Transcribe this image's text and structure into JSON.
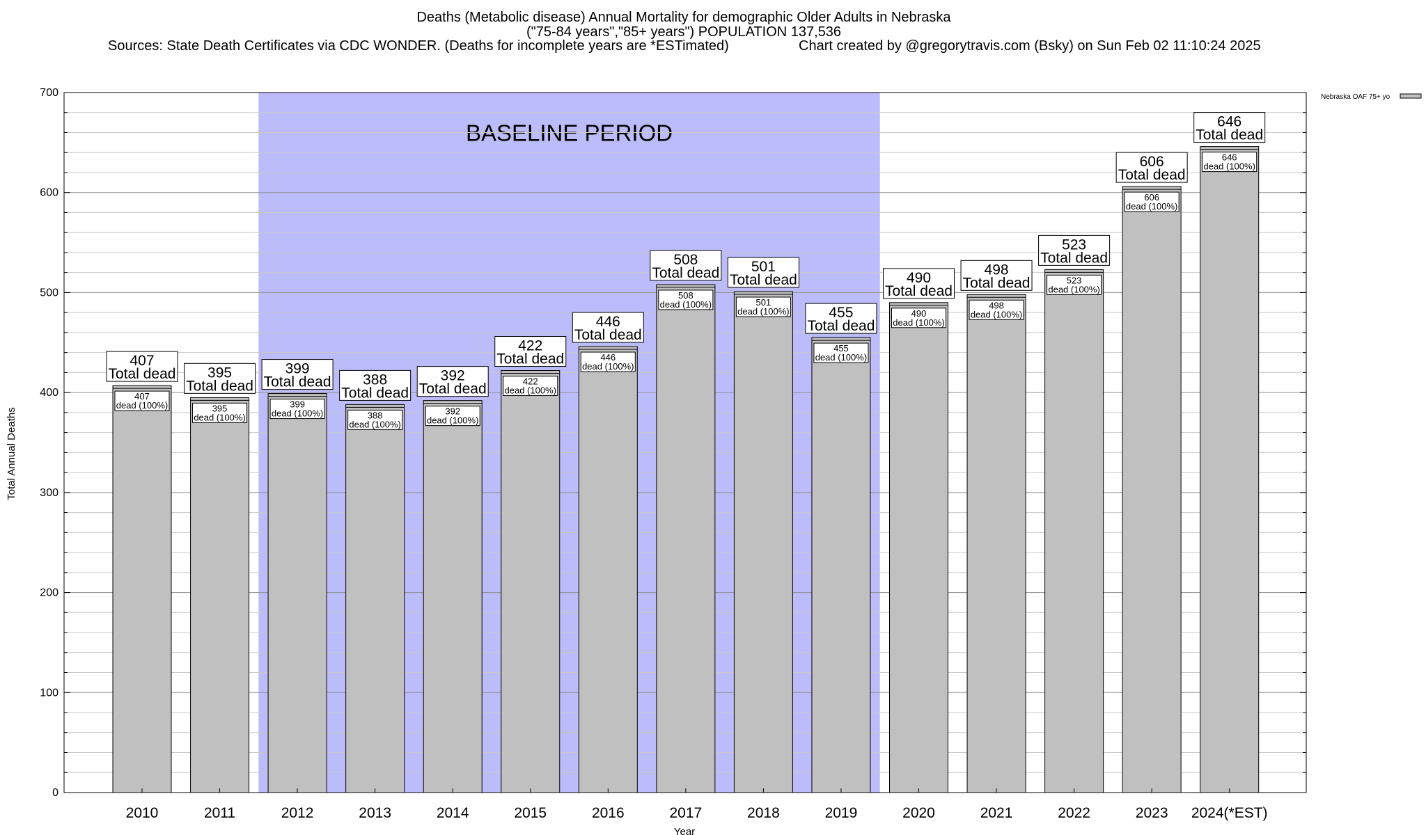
{
  "chart_data": {
    "type": "bar",
    "title_lines": [
      "Deaths (Metabolic disease) Annual Mortality for demographic Older Adults in Nebraska",
      "(\"75-84 years\",\"85+ years\") POPULATION 137,536"
    ],
    "sources": "Sources: State Death Certificates via CDC WONDER. (Deaths for incomplete years are *ESTimated)",
    "credit": "Chart created by @gregorytravis.com (Bsky) on Sun Feb 02 11:10:24 2025",
    "xlabel": "Year",
    "ylabel": "Total Annual Deaths",
    "ylim": [
      0,
      700
    ],
    "yticks": [
      0,
      100,
      200,
      300,
      400,
      500,
      600,
      700
    ],
    "categories": [
      "2010",
      "2011",
      "2012",
      "2013",
      "2014",
      "2015",
      "2016",
      "2017",
      "2018",
      "2019",
      "2020",
      "2021",
      "2022",
      "2023",
      "2024(*EST)"
    ],
    "series": [
      {
        "name": "Nebraska OAF 75+ yo",
        "values": [
          407,
          395,
          399,
          388,
          392,
          422,
          446,
          508,
          501,
          455,
          490,
          498,
          523,
          606,
          646
        ],
        "color": "#c0c0c0"
      }
    ],
    "total_label": "Total dead",
    "inner_label": "dead (100%)",
    "baseline": {
      "label": "BASELINE PERIOD",
      "start_category": "2012",
      "end_category": "2019",
      "color": "#bcbcfa"
    },
    "grid": true,
    "legend_position": "top-right"
  }
}
